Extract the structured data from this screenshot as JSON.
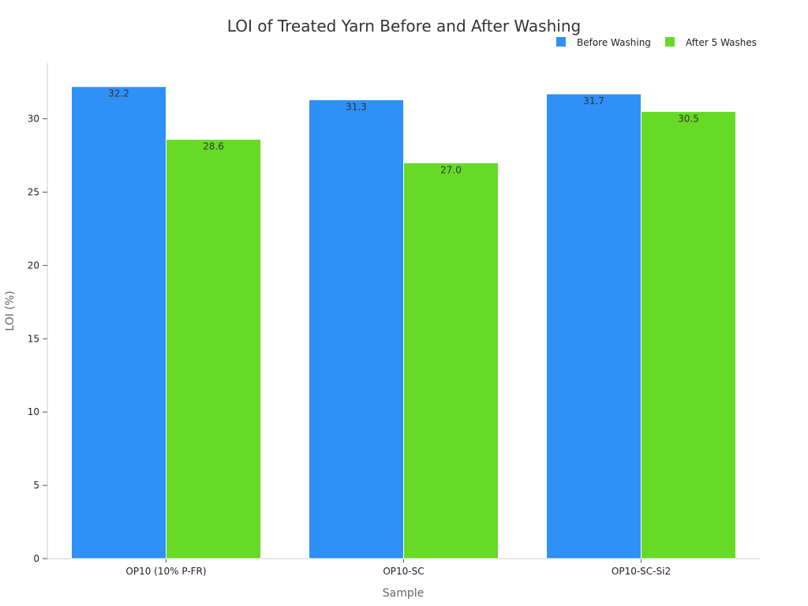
{
  "chart_data": {
    "type": "bar",
    "title": "LOI of Treated Yarn Before and After Washing",
    "xlabel": "Sample",
    "ylabel": "LOI (%)",
    "categories": [
      "OP10 (10% P-FR)",
      "OP10-SC",
      "OP10-SC-Si2"
    ],
    "series": [
      {
        "name": "Before Washing",
        "values": [
          32.2,
          31.3,
          31.7
        ],
        "color": "#2f90f8"
      },
      {
        "name": "After 5 Washes",
        "values": [
          28.6,
          27.0,
          30.5
        ],
        "color": "#66da26"
      }
    ],
    "ylim": [
      0,
      33.8
    ],
    "yticks": [
      0,
      5,
      10,
      15,
      20,
      25,
      30
    ],
    "grid": false,
    "legend": "top-right",
    "data_label_format": "one-decimal"
  }
}
